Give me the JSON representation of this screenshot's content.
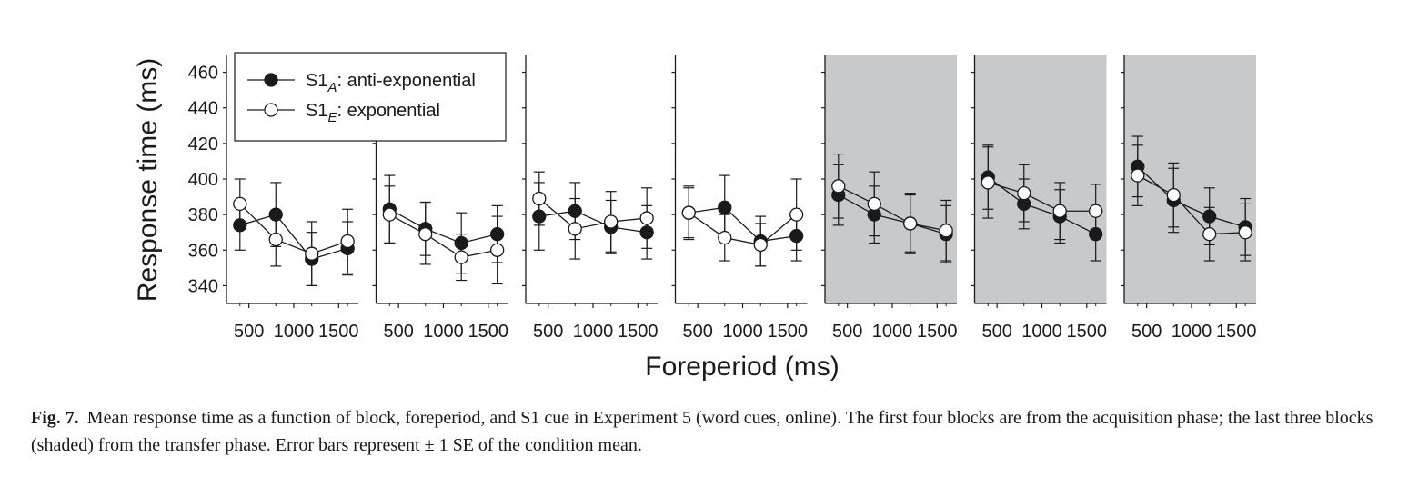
{
  "chart_data": {
    "type": "line",
    "ylabel": "Response time (ms)",
    "xlabel": "Foreperiod (ms)",
    "x": [
      400,
      800,
      1200,
      1600
    ],
    "xticks": [
      500,
      1000,
      1500
    ],
    "xlim": [
      250,
      1720
    ],
    "ylim": [
      330,
      470
    ],
    "yticks": [
      340,
      360,
      380,
      400,
      420,
      440,
      460
    ],
    "panel_count": 7,
    "shaded_panels": [
      5,
      6,
      7
    ],
    "shade_color": "#c8c9cb",
    "legend": {
      "placement": "top-left",
      "entries": [
        {
          "key": "anti",
          "prefix": "S1",
          "sub": "A",
          "suffix": ": anti-exponential",
          "marker": "filled"
        },
        {
          "key": "exp",
          "prefix": "S1",
          "sub": "E",
          "suffix": ": exponential",
          "marker": "open"
        }
      ]
    },
    "series": [
      {
        "key": "anti",
        "marker": "filled",
        "blocks": [
          {
            "values": [
              374,
              380,
              355,
              361
            ],
            "se": [
              14,
              18,
              15,
              15
            ]
          },
          {
            "values": [
              383,
              372,
              364,
              369
            ],
            "se": [
              19,
              15,
              17,
              16
            ]
          },
          {
            "values": [
              379,
              382,
              373,
              370
            ],
            "se": [
              19,
              16,
              15,
              15
            ]
          },
          {
            "values": [
              381,
              384,
              365,
              368
            ],
            "se": [
              15,
              18,
              14,
              14
            ]
          },
          {
            "values": [
              391,
              380,
              375,
              369
            ],
            "se": [
              17,
              16,
              16,
              16
            ]
          },
          {
            "values": [
              401,
              386,
              379,
              369
            ],
            "se": [
              18,
              14,
              15,
              15
            ]
          },
          {
            "values": [
              407,
              388,
              379,
              373
            ],
            "se": [
              17,
              18,
              16,
              16
            ]
          }
        ]
      },
      {
        "key": "exp",
        "marker": "open",
        "blocks": [
          {
            "values": [
              386,
              366,
              358,
              365
            ],
            "se": [
              14,
              15,
              18,
              18
            ]
          },
          {
            "values": [
              380,
              369,
              356,
              360
            ],
            "se": [
              16,
              17,
              13,
              19
            ]
          },
          {
            "values": [
              389,
              372,
              376,
              378
            ],
            "se": [
              15,
              17,
              17,
              17
            ]
          },
          {
            "values": [
              381,
              367,
              363,
              380
            ],
            "se": [
              14,
              13,
              12,
              20
            ]
          },
          {
            "values": [
              396,
              386,
              375,
              371
            ],
            "se": [
              18,
              18,
              17,
              17
            ]
          },
          {
            "values": [
              398,
              392,
              382,
              382
            ],
            "se": [
              20,
              16,
              16,
              15
            ]
          },
          {
            "values": [
              402,
              391,
              369,
              370
            ],
            "se": [
              17,
              18,
              15,
              16
            ]
          }
        ]
      }
    ]
  },
  "caption": {
    "label": "Fig. 7.",
    "text": "Mean response time as a function of block, foreperiod, and S1 cue in Experiment 5 (word cues, online). The first four blocks are from the acquisition phase; the last three blocks (shaded) from the transfer phase. Error bars represent ± 1 SE of the condition mean."
  }
}
